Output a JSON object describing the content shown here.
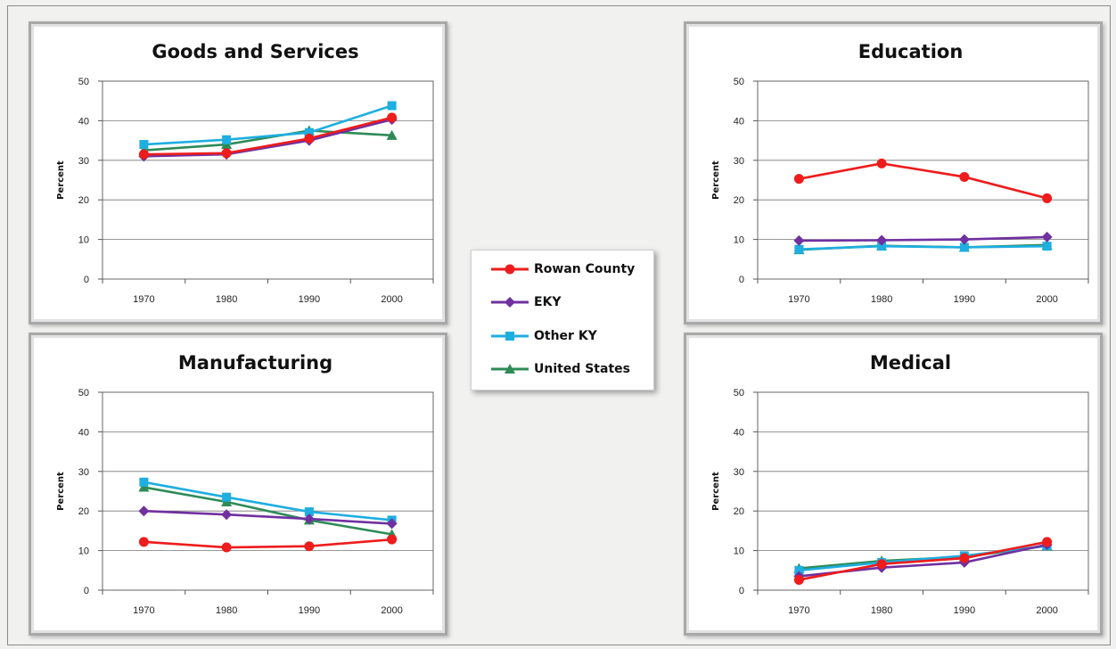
{
  "legend": [
    {
      "name": "Rowan County",
      "color": "#ee1c1c",
      "marker": "circle"
    },
    {
      "name": "EKY",
      "color": "#7030a0",
      "marker": "diamond"
    },
    {
      "name": "Other KY",
      "color": "#1eaee0",
      "marker": "square"
    },
    {
      "name": "United States",
      "color": "#2e8b57",
      "marker": "triangle"
    }
  ],
  "chart_data": [
    {
      "type": "line",
      "title": "Goods and Services",
      "ylabel": "Percent",
      "categories": [
        "1970",
        "1980",
        "1990",
        "2000"
      ],
      "ylim": [
        0,
        50
      ],
      "yticks": [
        "0",
        "10",
        "20",
        "30",
        "40",
        "50"
      ],
      "grid": true,
      "series": [
        {
          "name": "Rowan County",
          "values": [
            31.5,
            31.8,
            35.5,
            40.8
          ]
        },
        {
          "name": "EKY",
          "values": [
            31.0,
            31.5,
            35.0,
            40.3
          ]
        },
        {
          "name": "Other KY",
          "values": [
            34.0,
            35.2,
            37.0,
            43.8
          ]
        },
        {
          "name": "United States",
          "values": [
            32.5,
            34.0,
            37.5,
            36.3
          ]
        }
      ]
    },
    {
      "type": "line",
      "title": "Education",
      "ylabel": "Percent",
      "categories": [
        "1970",
        "1980",
        "1990",
        "2000"
      ],
      "ylim": [
        0,
        50
      ],
      "yticks": [
        "0",
        "10",
        "20",
        "30",
        "40",
        "50"
      ],
      "grid": true,
      "series": [
        {
          "name": "Rowan County",
          "values": [
            25.3,
            29.2,
            25.8,
            20.4
          ]
        },
        {
          "name": "EKY",
          "values": [
            9.7,
            9.8,
            10.0,
            10.6
          ]
        },
        {
          "name": "Other KY",
          "values": [
            7.5,
            8.3,
            8.0,
            8.3
          ]
        },
        {
          "name": "United States",
          "values": [
            7.4,
            8.4,
            8.0,
            8.6
          ]
        }
      ]
    },
    {
      "type": "line",
      "title": "Manufacturing",
      "ylabel": "Percent",
      "categories": [
        "1970",
        "1980",
        "1990",
        "2000"
      ],
      "ylim": [
        0,
        50
      ],
      "yticks": [
        "0",
        "10",
        "20",
        "30",
        "40",
        "50"
      ],
      "grid": true,
      "series": [
        {
          "name": "Rowan County",
          "values": [
            12.2,
            10.8,
            11.1,
            12.8
          ]
        },
        {
          "name": "EKY",
          "values": [
            20.0,
            19.1,
            18.0,
            16.8
          ]
        },
        {
          "name": "Other KY",
          "values": [
            27.3,
            23.5,
            19.8,
            17.7
          ]
        },
        {
          "name": "United States",
          "values": [
            26.0,
            22.3,
            17.7,
            14.1
          ]
        }
      ]
    },
    {
      "type": "line",
      "title": "Medical",
      "ylabel": "Percent",
      "categories": [
        "1970",
        "1980",
        "1990",
        "2000"
      ],
      "ylim": [
        0,
        50
      ],
      "yticks": [
        "0",
        "10",
        "20",
        "30",
        "40",
        "50"
      ],
      "grid": true,
      "series": [
        {
          "name": "Rowan County",
          "values": [
            2.6,
            6.6,
            8.1,
            12.2
          ]
        },
        {
          "name": "EKY",
          "values": [
            3.5,
            5.7,
            7.0,
            11.5
          ]
        },
        {
          "name": "Other KY",
          "values": [
            5.0,
            7.0,
            8.7,
            11.2
          ]
        },
        {
          "name": "United States",
          "values": [
            5.5,
            7.4,
            8.4,
            11.2
          ]
        }
      ]
    }
  ]
}
